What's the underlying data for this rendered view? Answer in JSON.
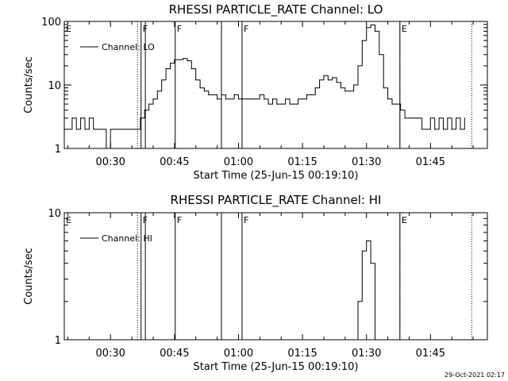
{
  "footer": {
    "timestamp": "29-Oct-2021 02:17"
  },
  "chart_data": [
    {
      "type": "line",
      "title": "RHESSI PARTICLE_RATE Channel: LO",
      "xlabel": "Start Time (25-Jun-15 00:19:10)",
      "ylabel": "Counts/sec",
      "yscale": "log",
      "ylim": [
        1,
        100
      ],
      "y_ticks": [
        "1",
        "10",
        "100"
      ],
      "x_ticks": [
        "00:30",
        "00:45",
        "01:00",
        "01:15",
        "01:30",
        "01:45"
      ],
      "legend": {
        "label": "Channel: LO",
        "placement": "top-left"
      },
      "series": [
        {
          "name": "Channel: LO",
          "x": [
            "00:20",
            "00:21",
            "00:22",
            "00:23",
            "00:24",
            "00:25",
            "00:26",
            "00:27",
            "00:28",
            "00:29",
            "00:30",
            "00:31",
            "00:32",
            "00:33",
            "00:34",
            "00:35",
            "00:36",
            "00:37",
            "00:38",
            "00:39",
            "00:40",
            "00:41",
            "00:42",
            "00:43",
            "00:44",
            "00:45",
            "00:46",
            "00:47",
            "00:48",
            "00:49",
            "00:50",
            "00:51",
            "00:52",
            "00:53",
            "00:54",
            "00:55",
            "00:56",
            "00:57",
            "00:58",
            "00:59",
            "01:00",
            "01:01",
            "01:02",
            "01:03",
            "01:04",
            "01:05",
            "01:06",
            "01:07",
            "01:08",
            "01:09",
            "01:10",
            "01:11",
            "01:12",
            "01:13",
            "01:14",
            "01:15",
            "01:16",
            "01:17",
            "01:18",
            "01:19",
            "01:20",
            "01:21",
            "01:22",
            "01:23",
            "01:24",
            "01:25",
            "01:26",
            "01:27",
            "01:28",
            "01:29",
            "01:30",
            "01:31",
            "01:32",
            "01:33",
            "01:34",
            "01:35",
            "01:36",
            "01:37",
            "01:38",
            "01:39",
            "01:40",
            "01:41",
            "01:42",
            "01:43",
            "01:44",
            "01:45",
            "01:46",
            "01:47",
            "01:48",
            "01:49",
            "01:50",
            "01:51",
            "01:52",
            "01:53"
          ],
          "y": [
            2,
            3,
            2,
            3,
            2,
            3,
            2,
            2,
            2,
            1,
            2,
            2,
            2,
            2,
            2,
            2,
            2,
            3,
            4,
            5,
            6,
            8,
            12,
            18,
            22,
            25,
            25,
            26,
            24,
            18,
            12,
            9,
            8,
            7,
            7,
            6,
            7,
            6,
            6,
            7,
            6,
            6,
            6,
            6,
            6,
            7,
            6,
            5,
            6,
            5,
            5,
            6,
            5,
            5,
            6,
            6,
            7,
            7,
            9,
            12,
            14,
            12,
            13,
            11,
            9,
            8,
            8,
            10,
            20,
            50,
            80,
            88,
            70,
            30,
            9,
            6,
            5,
            5,
            4,
            3,
            3,
            3,
            3,
            2,
            2,
            3,
            2,
            3,
            2,
            3,
            2,
            3,
            2,
            3
          ]
        }
      ],
      "markers": [
        {
          "label": "E",
          "time": "00:19:10",
          "style": "solid"
        },
        {
          "label": "",
          "time": "00:36:20",
          "style": "dotted"
        },
        {
          "label": "F",
          "time": "00:37:10",
          "style": "solid"
        },
        {
          "label": "",
          "time": "00:38:10",
          "style": "solid"
        },
        {
          "label": "F",
          "time": "00:45:10",
          "style": "solid"
        },
        {
          "label": "",
          "time": "00:56:00",
          "style": "solid"
        },
        {
          "label": "F",
          "time": "01:00:50",
          "style": "solid"
        },
        {
          "label": "E",
          "time": "01:37:50",
          "style": "solid"
        },
        {
          "label": "",
          "time": "01:37:50",
          "style": "dotted"
        },
        {
          "label": "",
          "time": "01:54:40",
          "style": "dotted"
        }
      ]
    },
    {
      "type": "line",
      "title": "RHESSI PARTICLE_RATE Channel: HI",
      "xlabel": "Start Time (25-Jun-15 00:19:10)",
      "ylabel": "Counts/sec",
      "yscale": "log",
      "ylim": [
        1,
        10
      ],
      "y_ticks": [
        "1",
        "10"
      ],
      "x_ticks": [
        "00:30",
        "00:45",
        "01:00",
        "01:15",
        "01:30",
        "01:45"
      ],
      "legend": {
        "label": "Channel: HI",
        "placement": "top-left"
      },
      "series": [
        {
          "name": "Channel: HI",
          "x": [
            "01:27",
            "01:28",
            "01:29",
            "01:30",
            "01:31",
            "01:32"
          ],
          "y": [
            1,
            2,
            5,
            6,
            4,
            1
          ]
        }
      ],
      "markers": [
        {
          "label": "E",
          "time": "00:19:10",
          "style": "solid"
        },
        {
          "label": "",
          "time": "00:36:20",
          "style": "dotted"
        },
        {
          "label": "F",
          "time": "00:37:10",
          "style": "solid"
        },
        {
          "label": "",
          "time": "00:38:10",
          "style": "solid"
        },
        {
          "label": "F",
          "time": "00:45:10",
          "style": "solid"
        },
        {
          "label": "",
          "time": "00:56:00",
          "style": "solid"
        },
        {
          "label": "F",
          "time": "01:00:50",
          "style": "solid"
        },
        {
          "label": "E",
          "time": "01:37:50",
          "style": "solid"
        },
        {
          "label": "",
          "time": "01:37:50",
          "style": "dotted"
        },
        {
          "label": "",
          "time": "01:54:40",
          "style": "dotted"
        }
      ]
    }
  ]
}
